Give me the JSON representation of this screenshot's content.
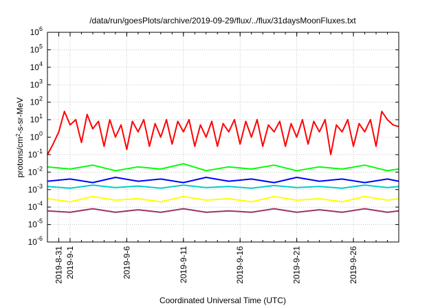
{
  "chart_data": {
    "type": "line",
    "title": "/data/run/goesPlots/archive/2019-09-29/flux/../flux/31daysMoonFluxes.txt",
    "xlabel": "Coordinated Universal Time (UTC)",
    "ylabel": {
      "prefix": "protons/cm",
      "sup": "2",
      "suffix": "-s-sr-MeV"
    },
    "yscale": "log",
    "ylim": [
      1e-06,
      1000000.0
    ],
    "xlim": [
      "2019-08-30",
      "2019-09-30"
    ],
    "grid": true,
    "y_ticks": [
      {
        "value": 1e-06,
        "base": "10",
        "exp": "-6"
      },
      {
        "value": 1e-05,
        "base": "10",
        "exp": "-5"
      },
      {
        "value": 0.0001,
        "base": "10",
        "exp": "-4"
      },
      {
        "value": 0.001,
        "base": "10",
        "exp": "-3"
      },
      {
        "value": 0.01,
        "base": "10",
        "exp": "-2"
      },
      {
        "value": 0.1,
        "base": "10",
        "exp": "-1"
      },
      {
        "value": 1.0,
        "base": "10",
        "exp": "0"
      },
      {
        "value": 10.0,
        "base": "10",
        "exp": "1"
      },
      {
        "value": 100.0,
        "base": "10",
        "exp": "2"
      },
      {
        "value": 1000.0,
        "base": "10",
        "exp": "3"
      },
      {
        "value": 10000.0,
        "base": "10",
        "exp": "4"
      },
      {
        "value": 100000.0,
        "base": "10",
        "exp": "5"
      },
      {
        "value": 1000000.0,
        "base": "10",
        "exp": "6"
      }
    ],
    "x_ticks": [
      {
        "date": "2019-08-31",
        "label": "2019-8-31"
      },
      {
        "date": "2019-09-01",
        "label": "2019-9-1"
      },
      {
        "date": "2019-09-06",
        "label": "2019-9-6"
      },
      {
        "date": "2019-09-11",
        "label": "2019-9-11"
      },
      {
        "date": "2019-09-16",
        "label": "2019-9-16"
      },
      {
        "date": "2019-09-21",
        "label": "2019-9-21"
      },
      {
        "date": "2019-09-26",
        "label": "2019-9-26"
      }
    ],
    "series": [
      {
        "color": "#ff0000",
        "x": [
          "2019-08-30",
          "2019-08-30T12:00",
          "2019-08-31",
          "2019-08-31T12:00",
          "2019-09-01",
          "2019-09-01T12:00",
          "2019-09-02",
          "2019-09-02T12:00",
          "2019-09-03",
          "2019-09-03T12:00",
          "2019-09-04",
          "2019-09-04T12:00",
          "2019-09-05",
          "2019-09-05T12:00",
          "2019-09-06",
          "2019-09-06T12:00",
          "2019-09-07",
          "2019-09-07T12:00",
          "2019-09-08",
          "2019-09-08T12:00",
          "2019-09-09",
          "2019-09-09T12:00",
          "2019-09-10",
          "2019-09-10T12:00",
          "2019-09-11",
          "2019-09-11T12:00",
          "2019-09-12",
          "2019-09-12T12:00",
          "2019-09-13",
          "2019-09-13T12:00",
          "2019-09-14",
          "2019-09-14T12:00",
          "2019-09-15",
          "2019-09-15T12:00",
          "2019-09-16",
          "2019-09-16T12:00",
          "2019-09-17",
          "2019-09-17T12:00",
          "2019-09-18",
          "2019-09-18T12:00",
          "2019-09-19",
          "2019-09-19T12:00",
          "2019-09-20",
          "2019-09-20T12:00",
          "2019-09-21",
          "2019-09-21T12:00",
          "2019-09-22",
          "2019-09-22T12:00",
          "2019-09-23",
          "2019-09-23T12:00",
          "2019-09-24",
          "2019-09-24T12:00",
          "2019-09-25",
          "2019-09-25T12:00",
          "2019-09-26",
          "2019-09-26T12:00",
          "2019-09-27",
          "2019-09-27T12:00",
          "2019-09-28",
          "2019-09-28T12:00",
          "2019-09-29",
          "2019-09-29T12:00",
          "2019-09-30"
        ],
        "y": [
          0.1,
          0.4,
          2,
          30,
          5,
          10,
          0.5,
          20,
          3,
          8,
          0.3,
          10,
          1,
          5,
          0.2,
          8,
          2,
          10,
          0.3,
          6,
          1,
          10,
          0.4,
          8,
          2,
          10,
          0.3,
          5,
          1,
          8,
          0.3,
          6,
          2,
          10,
          0.4,
          8,
          1,
          10,
          0.3,
          5,
          2,
          8,
          0.3,
          6,
          1,
          10,
          0.4,
          8,
          2,
          10,
          0.1,
          5,
          2,
          10,
          0.3,
          6,
          2,
          10,
          0.3,
          30,
          10,
          5,
          4
        ]
      },
      {
        "color": "#00ff00",
        "x": [
          "2019-08-30",
          "2019-09-01",
          "2019-09-03",
          "2019-09-05",
          "2019-09-07",
          "2019-09-09",
          "2019-09-11",
          "2019-09-13",
          "2019-09-15",
          "2019-09-17",
          "2019-09-19",
          "2019-09-21",
          "2019-09-23",
          "2019-09-25",
          "2019-09-27",
          "2019-09-29",
          "2019-09-30"
        ],
        "y": [
          0.02,
          0.015,
          0.025,
          0.012,
          0.02,
          0.015,
          0.03,
          0.012,
          0.02,
          0.015,
          0.025,
          0.012,
          0.02,
          0.015,
          0.025,
          0.012,
          0.015
        ]
      },
      {
        "color": "#0000ff",
        "x": [
          "2019-08-30",
          "2019-09-01",
          "2019-09-03",
          "2019-09-05",
          "2019-09-07",
          "2019-09-09",
          "2019-09-11",
          "2019-09-13",
          "2019-09-15",
          "2019-09-17",
          "2019-09-19",
          "2019-09-21",
          "2019-09-23",
          "2019-09-25",
          "2019-09-27",
          "2019-09-29",
          "2019-09-30"
        ],
        "y": [
          0.003,
          0.004,
          0.0025,
          0.005,
          0.003,
          0.004,
          0.0025,
          0.005,
          0.003,
          0.004,
          0.0025,
          0.005,
          0.003,
          0.004,
          0.0025,
          0.004,
          0.003
        ]
      },
      {
        "color": "#00cccc",
        "x": [
          "2019-08-30",
          "2019-09-01",
          "2019-09-03",
          "2019-09-05",
          "2019-09-07",
          "2019-09-09",
          "2019-09-11",
          "2019-09-13",
          "2019-09-15",
          "2019-09-17",
          "2019-09-19",
          "2019-09-21",
          "2019-09-23",
          "2019-09-25",
          "2019-09-27",
          "2019-09-29",
          "2019-09-30"
        ],
        "y": [
          0.0015,
          0.0012,
          0.0018,
          0.0013,
          0.0016,
          0.0012,
          0.0018,
          0.0013,
          0.0015,
          0.0012,
          0.0017,
          0.0013,
          0.0015,
          0.0012,
          0.0018,
          0.0013,
          0.0015
        ]
      },
      {
        "color": "#ffff00",
        "x": [
          "2019-08-30",
          "2019-09-01",
          "2019-09-03",
          "2019-09-05",
          "2019-09-07",
          "2019-09-09",
          "2019-09-11",
          "2019-09-13",
          "2019-09-15",
          "2019-09-17",
          "2019-09-19",
          "2019-09-21",
          "2019-09-23",
          "2019-09-25",
          "2019-09-27",
          "2019-09-29",
          "2019-09-30"
        ],
        "y": [
          0.0003,
          0.0002,
          0.0004,
          0.00025,
          0.0003,
          0.0002,
          0.0004,
          0.00025,
          0.0003,
          0.0002,
          0.0004,
          0.00025,
          0.0003,
          0.0002,
          0.0004,
          0.00025,
          0.0003
        ]
      },
      {
        "color": "#993366",
        "x": [
          "2019-08-30",
          "2019-09-01",
          "2019-09-03",
          "2019-09-05",
          "2019-09-07",
          "2019-09-09",
          "2019-09-11",
          "2019-09-13",
          "2019-09-15",
          "2019-09-17",
          "2019-09-19",
          "2019-09-21",
          "2019-09-23",
          "2019-09-25",
          "2019-09-27",
          "2019-09-29",
          "2019-09-30"
        ],
        "y": [
          6e-05,
          5e-05,
          8e-05,
          5e-05,
          7e-05,
          5e-05,
          8e-05,
          5e-05,
          6e-05,
          5e-05,
          8e-05,
          5e-05,
          7e-05,
          5e-05,
          8e-05,
          5e-05,
          6e-05
        ]
      }
    ]
  }
}
